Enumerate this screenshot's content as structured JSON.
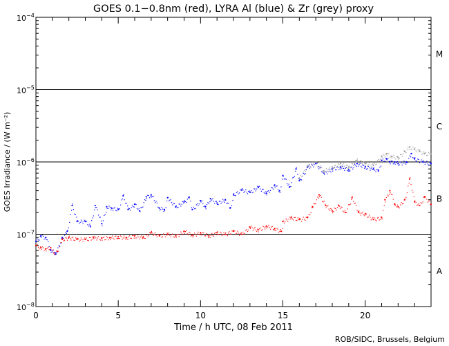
{
  "chart_data": {
    "type": "scatter",
    "title": "GOES 0.1−0.8nm (red), LYRA Al (blue) & Zr (grey) proxy",
    "xlabel": "Time / h UTC, 08 Feb 2011",
    "ylabel": "GOES Irradiance / (W m⁻²)",
    "credit": "ROB/SIDC, Brussels, Belgium",
    "x_scale": "linear",
    "y_scale": "log",
    "xlim": [
      0,
      24
    ],
    "ylim": [
      1e-08,
      0.0001
    ],
    "x_ticks": [
      {
        "value": 0,
        "label": "0"
      },
      {
        "value": 5,
        "label": "5"
      },
      {
        "value": 10,
        "label": "10"
      },
      {
        "value": 15,
        "label": "15"
      },
      {
        "value": 20,
        "label": "20"
      }
    ],
    "y_ticks": [
      {
        "exp": -8,
        "base": "10",
        "sup": "−8"
      },
      {
        "exp": -7,
        "base": "10",
        "sup": "−7"
      },
      {
        "exp": -6,
        "base": "10",
        "sup": "−6"
      },
      {
        "exp": -5,
        "base": "10",
        "sup": "−5"
      },
      {
        "exp": -4,
        "base": "10",
        "sup": "−4"
      }
    ],
    "flare_class_lines": [
      1e-07,
      1e-06,
      1e-05
    ],
    "flare_classes": [
      {
        "label": "M",
        "log_y": -4.5
      },
      {
        "label": "C",
        "log_y": -5.5
      },
      {
        "label": "B",
        "log_y": -6.5
      },
      {
        "label": "A",
        "log_y": -7.5
      }
    ],
    "series": [
      {
        "name": "GOES 0.1-0.8nm",
        "color": "#ff0000",
        "x": [
          0,
          0.3,
          0.6,
          0.9,
          1.1,
          1.3,
          1.6,
          2.0,
          2.5,
          3.0,
          3.5,
          4.0,
          4.5,
          5.0,
          5.5,
          6.0,
          6.5,
          7.0,
          7.5,
          8.0,
          8.5,
          9.0,
          9.5,
          10.0,
          10.5,
          11.0,
          11.5,
          12.0,
          12.5,
          13.0,
          13.5,
          14.0,
          14.5,
          14.9,
          15.0,
          15.5,
          16.0,
          16.5,
          16.8,
          17.2,
          17.6,
          18.0,
          18.4,
          18.8,
          19.2,
          19.6,
          20.0,
          20.5,
          21.0,
          21.2,
          21.5,
          21.8,
          22.0,
          22.4,
          22.7,
          23.0,
          23.3,
          23.6,
          24.0
        ],
        "y": [
          7e-08,
          6.5e-08,
          6.3e-08,
          6.5e-08,
          5.5e-08,
          5.8e-08,
          8.5e-08,
          9e-08,
          8.5e-08,
          8.5e-08,
          9e-08,
          8.8e-08,
          9e-08,
          9.2e-08,
          9e-08,
          9.5e-08,
          9e-08,
          1.05e-07,
          9.5e-08,
          1e-07,
          9.5e-08,
          1.1e-07,
          9.8e-08,
          1.05e-07,
          9.5e-08,
          1.05e-07,
          1e-07,
          1.1e-07,
          1e-07,
          1.25e-07,
          1.15e-07,
          1.3e-07,
          1.2e-07,
          1.1e-07,
          1.5e-07,
          1.7e-07,
          1.6e-07,
          1.7e-07,
          2.4e-07,
          3.5e-07,
          2.5e-07,
          2.1e-07,
          2.5e-07,
          2e-07,
          3.2e-07,
          2e-07,
          1.9e-07,
          1.6e-07,
          1.7e-07,
          3e-07,
          4e-07,
          2.6e-07,
          2.4e-07,
          3e-07,
          5.8e-07,
          2.8e-07,
          2.5e-07,
          3.3e-07,
          2.6e-07
        ]
      },
      {
        "name": "LYRA Al proxy",
        "color": "#0000ff",
        "x": [
          0,
          0.3,
          0.6,
          0.9,
          1.2,
          1.6,
          1.9,
          2.2,
          2.5,
          3.0,
          3.3,
          3.6,
          4.0,
          4.3,
          4.6,
          5.0,
          5.3,
          5.6,
          6.0,
          6.3,
          6.7,
          7.0,
          7.5,
          7.8,
          8.0,
          8.5,
          9.0,
          9.3,
          9.5,
          10.0,
          10.3,
          10.6,
          11.0,
          11.5,
          11.8,
          12.0,
          12.5,
          13.0,
          13.5,
          14.0,
          14.5,
          14.8,
          15.0,
          15.4,
          15.8,
          16.0,
          16.5,
          17.0,
          17.5,
          18.0,
          18.5,
          19.0,
          19.5,
          20.0,
          20.5,
          20.8,
          21.0,
          21.3,
          21.5,
          21.8,
          22.0,
          22.5,
          22.8,
          23.0,
          23.5,
          24.0
        ],
        "y": [
          8e-08,
          9.5e-08,
          9e-08,
          6e-08,
          5.5e-08,
          9e-08,
          1.1e-07,
          2.5e-07,
          1.5e-07,
          1.5e-07,
          1.3e-07,
          2.5e-07,
          1.4e-07,
          2.4e-07,
          2.3e-07,
          2.2e-07,
          3.4e-07,
          2.2e-07,
          2.6e-07,
          2.1e-07,
          3.3e-07,
          3.5e-07,
          2.3e-07,
          2.2e-07,
          3.2e-07,
          2.4e-07,
          2.8e-07,
          3.2e-07,
          2.2e-07,
          2.9e-07,
          2.4e-07,
          3.1e-07,
          2.7e-07,
          3e-07,
          2.3e-07,
          3.5e-07,
          4.1e-07,
          3.8e-07,
          4.5e-07,
          3.7e-07,
          4.8e-07,
          4e-07,
          6.5e-07,
          4.5e-07,
          8e-07,
          5.5e-07,
          8.5e-07,
          9.5e-07,
          7e-07,
          8e-07,
          8.5e-07,
          7.8e-07,
          9.5e-07,
          8.5e-07,
          8e-07,
          7.5e-07,
          1.05e-06,
          1.1e-06,
          1e-06,
          1e-06,
          9.5e-07,
          1e-06,
          1.3e-06,
          1.1e-06,
          1e-06,
          9.5e-07
        ]
      },
      {
        "name": "LYRA Zr proxy",
        "color": "#999999",
        "x": [
          16.0,
          16.5,
          17.0,
          17.5,
          18.0,
          18.5,
          19.0,
          19.5,
          20.0,
          20.5,
          21.0,
          21.3,
          21.6,
          22.0,
          22.4,
          22.7,
          23.0,
          23.3,
          23.6,
          24.0
        ],
        "y": [
          6e-07,
          8.8e-07,
          1e-06,
          7.5e-07,
          8.5e-07,
          9.5e-07,
          8.5e-07,
          1.05e-06,
          9.5e-07,
          9e-07,
          1.2e-06,
          1.3e-06,
          1.2e-06,
          1.15e-06,
          1.4e-06,
          1.6e-06,
          1.5e-06,
          1.4e-06,
          1.3e-06,
          1.3e-06
        ]
      }
    ]
  }
}
